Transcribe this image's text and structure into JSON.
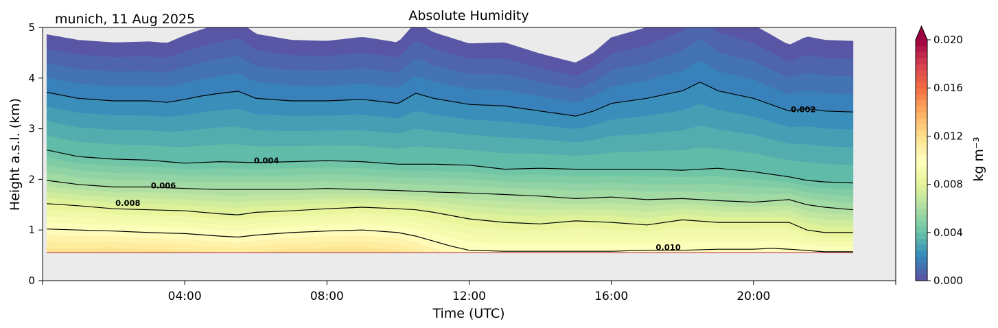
{
  "figure": {
    "location_date": "munich, 11 Aug 2025",
    "title": "Absolute Humidity"
  },
  "chart_data": {
    "type": "heatmap",
    "title": "Absolute Humidity",
    "subtitle": "munich, 11 Aug 2025",
    "xlabel": "Time (UTC)",
    "ylabel": "Height a.s.l. (km)",
    "xlim": [
      0,
      24
    ],
    "ylim": [
      0,
      5
    ],
    "x_ticks": [
      4,
      8,
      12,
      16,
      20
    ],
    "x_tick_labels": [
      "04:00",
      "08:00",
      "12:00",
      "16:00",
      "20:00"
    ],
    "y_ticks": [
      0,
      1,
      2,
      3,
      4,
      5
    ],
    "y_tick_labels": [
      "0",
      "1",
      "2",
      "3",
      "4",
      "5"
    ],
    "data_x_range": [
      0.12,
      22.8
    ],
    "ground_height_km": 0.55,
    "background_color": "#ebebeb",
    "colorbar": {
      "label": "kg m⁻³",
      "min": 0.0,
      "max": 0.02,
      "ticks": [
        0.0,
        0.004,
        0.008,
        0.012,
        0.016,
        0.02
      ],
      "tick_labels": [
        "0.000",
        "0.004",
        "0.008",
        "0.012",
        "0.016",
        "0.020"
      ],
      "extend": "max",
      "colormap": "Spectral_r"
    },
    "contour_levels": [
      0.002,
      0.004,
      0.006,
      0.008,
      0.01
    ],
    "contours": [
      {
        "level": 0.002,
        "label": "0.002",
        "label_at": [
          21.4,
          3.38
        ],
        "x": [
          0.12,
          1,
          2,
          3,
          3.5,
          4,
          4.5,
          5,
          5.5,
          6,
          7,
          8,
          9,
          10,
          10.5,
          11,
          12,
          13,
          14,
          14.5,
          15,
          15.5,
          16,
          17,
          18,
          18.5,
          19,
          20,
          21,
          21.5,
          22,
          22.8
        ],
        "y": [
          3.72,
          3.6,
          3.55,
          3.55,
          3.52,
          3.58,
          3.65,
          3.7,
          3.74,
          3.6,
          3.55,
          3.55,
          3.58,
          3.5,
          3.7,
          3.6,
          3.48,
          3.45,
          3.35,
          3.3,
          3.25,
          3.35,
          3.5,
          3.6,
          3.75,
          3.92,
          3.75,
          3.6,
          3.35,
          3.4,
          3.35,
          3.33
        ]
      },
      {
        "level": 0.004,
        "label": "0.004",
        "label_at": [
          6.3,
          2.37
        ],
        "x": [
          0.12,
          1,
          2,
          3,
          4,
          5,
          6,
          7,
          8,
          9,
          10,
          11,
          12,
          13,
          14,
          15,
          16,
          17,
          18,
          19,
          20,
          21,
          21.5,
          22,
          22.8
        ],
        "y": [
          2.58,
          2.45,
          2.4,
          2.38,
          2.32,
          2.35,
          2.33,
          2.35,
          2.37,
          2.35,
          2.3,
          2.3,
          2.28,
          2.2,
          2.22,
          2.2,
          2.2,
          2.2,
          2.18,
          2.22,
          2.15,
          2.05,
          1.98,
          1.95,
          1.93
        ]
      },
      {
        "level": 0.006,
        "label": "0.006",
        "label_at": [
          3.4,
          1.88
        ],
        "x": [
          0.12,
          1,
          2,
          3,
          4,
          5,
          6,
          7,
          8,
          9,
          10,
          11,
          12,
          13,
          14,
          15,
          16,
          17,
          18,
          19,
          20,
          21,
          21.5,
          22,
          22.8
        ],
        "y": [
          1.98,
          1.9,
          1.85,
          1.85,
          1.82,
          1.8,
          1.8,
          1.8,
          1.82,
          1.8,
          1.78,
          1.75,
          1.73,
          1.7,
          1.67,
          1.62,
          1.65,
          1.6,
          1.62,
          1.58,
          1.55,
          1.6,
          1.5,
          1.45,
          1.4
        ]
      },
      {
        "level": 0.008,
        "label": "0.008",
        "label_at": [
          2.4,
          1.53
        ],
        "x": [
          0.12,
          1,
          2,
          3,
          4,
          5,
          5.5,
          6,
          7,
          8,
          9,
          10,
          10.5,
          11,
          12,
          13,
          14,
          15,
          16,
          17,
          18,
          19,
          20,
          21,
          21.5,
          22,
          22.8
        ],
        "y": [
          1.52,
          1.48,
          1.42,
          1.4,
          1.38,
          1.32,
          1.3,
          1.35,
          1.38,
          1.42,
          1.45,
          1.42,
          1.4,
          1.35,
          1.22,
          1.15,
          1.12,
          1.18,
          1.15,
          1.1,
          1.2,
          1.15,
          1.15,
          1.15,
          1.0,
          0.95,
          0.95
        ]
      },
      {
        "level": 0.01,
        "label": "0.010",
        "label_at": [
          17.6,
          0.66
        ],
        "x": [
          0.12,
          1,
          2,
          3,
          4,
          5,
          5.5,
          6,
          7,
          8,
          9,
          10,
          10.5,
          11,
          11.5,
          12,
          13,
          14,
          15,
          16,
          17,
          18,
          19,
          20,
          20.5,
          21,
          22,
          22.8
        ],
        "y": [
          1.02,
          1.0,
          0.98,
          0.95,
          0.93,
          0.88,
          0.86,
          0.9,
          0.95,
          0.98,
          1.0,
          0.95,
          0.88,
          0.78,
          0.68,
          0.6,
          0.58,
          0.58,
          0.58,
          0.58,
          0.6,
          0.6,
          0.62,
          0.62,
          0.64,
          0.62,
          0.57,
          0.57
        ]
      }
    ]
  }
}
